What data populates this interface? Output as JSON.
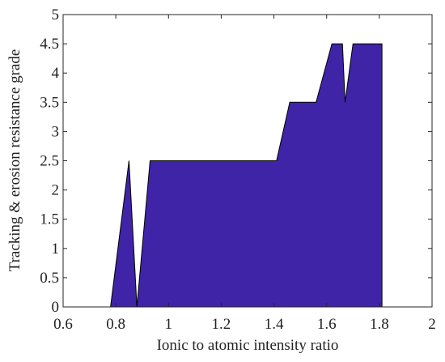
{
  "chart_data": {
    "type": "area",
    "xlabel": "Ionic to atomic intensity ratio",
    "ylabel": "Tracking & erosion resistance grade",
    "x": [
      0.78,
      0.85,
      0.88,
      0.93,
      1.41,
      1.46,
      1.56,
      1.62,
      1.66,
      1.67,
      1.7,
      1.81
    ],
    "values": [
      0,
      2.5,
      0,
      2.5,
      2.5,
      3.5,
      3.5,
      4.5,
      4.5,
      3.5,
      4.5,
      4.5
    ],
    "color": "#3f24a8",
    "xlim": [
      0.6,
      2
    ],
    "xticks": [
      0.6,
      0.8,
      1,
      1.2,
      1.4,
      1.6,
      1.8,
      2
    ],
    "ylim": [
      0,
      5
    ],
    "yticks": [
      0,
      0.5,
      1,
      1.5,
      2,
      2.5,
      3,
      3.5,
      4,
      4.5,
      5
    ]
  }
}
